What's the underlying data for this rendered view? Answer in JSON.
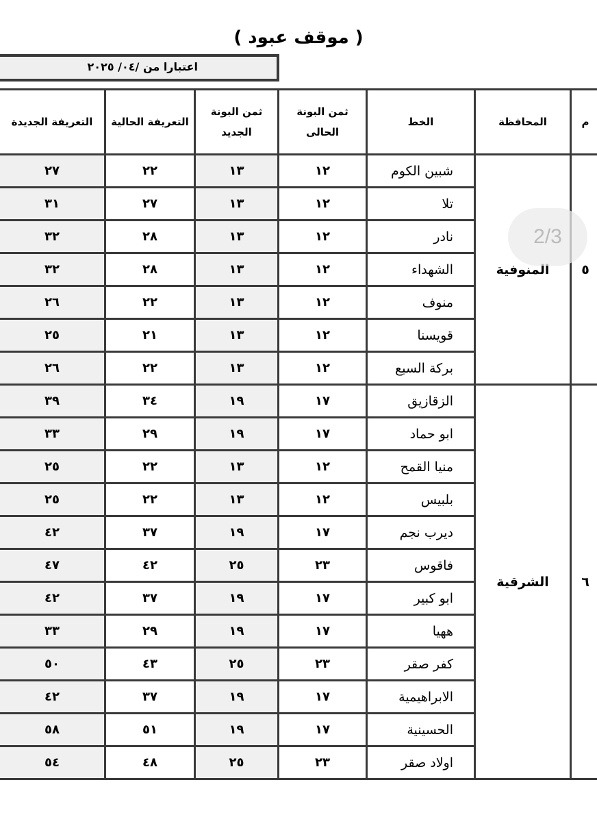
{
  "title": "( موقف عبود )",
  "effective_date": "اعتبارا من   /٠٤/ ٢٠٢٥",
  "headers": {
    "m": "م",
    "governorate": "المحافظة",
    "line": "الخط",
    "current_ticket_price": "ثمن البونة الحالى",
    "new_ticket_price": "ثمن البونة الجديد",
    "current_tariff": "التعريفة الحالية",
    "new_tariff": "التعريفة الجديدة"
  },
  "groups": [
    {
      "m": "٥",
      "governorate": "المنوفية",
      "rows": [
        {
          "line": "شبين الكوم",
          "current_ticket": "١٢",
          "new_ticket": "١٣",
          "current_tariff": "٢٢",
          "new_tariff": "٢٧"
        },
        {
          "line": "تلا",
          "current_ticket": "١٢",
          "new_ticket": "١٣",
          "current_tariff": "٢٧",
          "new_tariff": "٣١"
        },
        {
          "line": "نادر",
          "current_ticket": "١٢",
          "new_ticket": "١٣",
          "current_tariff": "٢٨",
          "new_tariff": "٣٢"
        },
        {
          "line": "الشهداء",
          "current_ticket": "١٢",
          "new_ticket": "١٣",
          "current_tariff": "٢٨",
          "new_tariff": "٣٢"
        },
        {
          "line": "منوف",
          "current_ticket": "١٢",
          "new_ticket": "١٣",
          "current_tariff": "٢٢",
          "new_tariff": "٢٦"
        },
        {
          "line": "قويسنا",
          "current_ticket": "١٢",
          "new_ticket": "١٣",
          "current_tariff": "٢١",
          "new_tariff": "٢٥"
        },
        {
          "line": "بركة السبع",
          "current_ticket": "١٢",
          "new_ticket": "١٣",
          "current_tariff": "٢٢",
          "new_tariff": "٢٦"
        }
      ]
    },
    {
      "m": "٦",
      "governorate": "الشرقية",
      "rows": [
        {
          "line": "الزقازيق",
          "current_ticket": "١٧",
          "new_ticket": "١٩",
          "current_tariff": "٣٤",
          "new_tariff": "٣٩"
        },
        {
          "line": "ابو حماد",
          "current_ticket": "١٧",
          "new_ticket": "١٩",
          "current_tariff": "٢٩",
          "new_tariff": "٣٣"
        },
        {
          "line": "منيا القمح",
          "current_ticket": "١٢",
          "new_ticket": "١٣",
          "current_tariff": "٢٢",
          "new_tariff": "٢٥"
        },
        {
          "line": "بلبيس",
          "current_ticket": "١٢",
          "new_ticket": "١٣",
          "current_tariff": "٢٢",
          "new_tariff": "٢٥"
        },
        {
          "line": "ديرب نجم",
          "current_ticket": "١٧",
          "new_ticket": "١٩",
          "current_tariff": "٣٧",
          "new_tariff": "٤٢"
        },
        {
          "line": "فاقوس",
          "current_ticket": "٢٣",
          "new_ticket": "٢٥",
          "current_tariff": "٤٢",
          "new_tariff": "٤٧"
        },
        {
          "line": "ابو كبير",
          "current_ticket": "١٧",
          "new_ticket": "١٩",
          "current_tariff": "٣٧",
          "new_tariff": "٤٢"
        },
        {
          "line": "ههيا",
          "current_ticket": "١٧",
          "new_ticket": "١٩",
          "current_tariff": "٢٩",
          "new_tariff": "٣٣"
        },
        {
          "line": "كفر صقر",
          "current_ticket": "٢٣",
          "new_ticket": "٢٥",
          "current_tariff": "٤٣",
          "new_tariff": "٥٠"
        },
        {
          "line": "الابراهيمية",
          "current_ticket": "١٧",
          "new_ticket": "١٩",
          "current_tariff": "٣٧",
          "new_tariff": "٤٢"
        },
        {
          "line": "الحسينية",
          "current_ticket": "١٧",
          "new_ticket": "١٩",
          "current_tariff": "٥١",
          "new_tariff": "٥٨"
        },
        {
          "line": "اولاد صقر",
          "current_ticket": "٢٣",
          "new_ticket": "٢٥",
          "current_tariff": "٤٨",
          "new_tariff": "٥٤"
        }
      ]
    }
  ],
  "page_indicator": "2/3"
}
